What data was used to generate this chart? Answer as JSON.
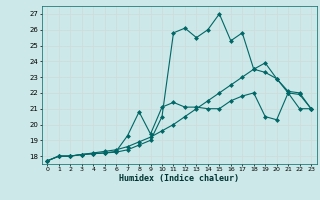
{
  "xlabel": "Humidex (Indice chaleur)",
  "bg_color": "#cce8e8",
  "grid_color": "#b0d8d8",
  "line_color": "#006666",
  "xlim": [
    -0.5,
    23.5
  ],
  "ylim": [
    17.5,
    27.5
  ],
  "xticks": [
    0,
    1,
    2,
    3,
    4,
    5,
    6,
    7,
    8,
    9,
    10,
    11,
    12,
    13,
    14,
    15,
    16,
    17,
    18,
    19,
    20,
    21,
    22,
    23
  ],
  "yticks": [
    18,
    19,
    20,
    21,
    22,
    23,
    24,
    25,
    26,
    27
  ],
  "line1_x": [
    0,
    1,
    2,
    3,
    4,
    5,
    6,
    7,
    8,
    9,
    10,
    11,
    12,
    13,
    14,
    15,
    16,
    17,
    18,
    19,
    20,
    21,
    22,
    23
  ],
  "line1_y": [
    17.7,
    18.0,
    18.0,
    18.1,
    18.2,
    18.3,
    18.4,
    18.6,
    18.9,
    19.2,
    19.6,
    20.0,
    20.5,
    21.0,
    21.5,
    22.0,
    22.5,
    23.0,
    23.5,
    23.9,
    22.9,
    22.0,
    21.9,
    21.0
  ],
  "line2_x": [
    0,
    1,
    2,
    3,
    4,
    5,
    6,
    7,
    8,
    9,
    10,
    11,
    12,
    13,
    14,
    15,
    16,
    17,
    18,
    19,
    20,
    21,
    22,
    23
  ],
  "line2_y": [
    17.7,
    18.0,
    18.0,
    18.1,
    18.15,
    18.2,
    18.3,
    19.3,
    20.8,
    19.4,
    21.1,
    21.4,
    21.1,
    21.1,
    21.0,
    21.0,
    21.5,
    21.8,
    22.0,
    20.5,
    20.3,
    22.0,
    21.0,
    21.0
  ],
  "line3_x": [
    0,
    1,
    2,
    3,
    4,
    5,
    6,
    7,
    8,
    9,
    10,
    11,
    12,
    13,
    14,
    15,
    16,
    17,
    18,
    19,
    20,
    21,
    22,
    23
  ],
  "line3_y": [
    17.7,
    18.0,
    18.0,
    18.1,
    18.15,
    18.2,
    18.25,
    18.4,
    18.7,
    19.0,
    20.5,
    25.8,
    26.1,
    25.5,
    26.0,
    27.0,
    25.3,
    25.8,
    23.5,
    23.3,
    22.9,
    22.1,
    22.0,
    21.0
  ],
  "marker_size": 2.5,
  "linewidth": 0.8
}
